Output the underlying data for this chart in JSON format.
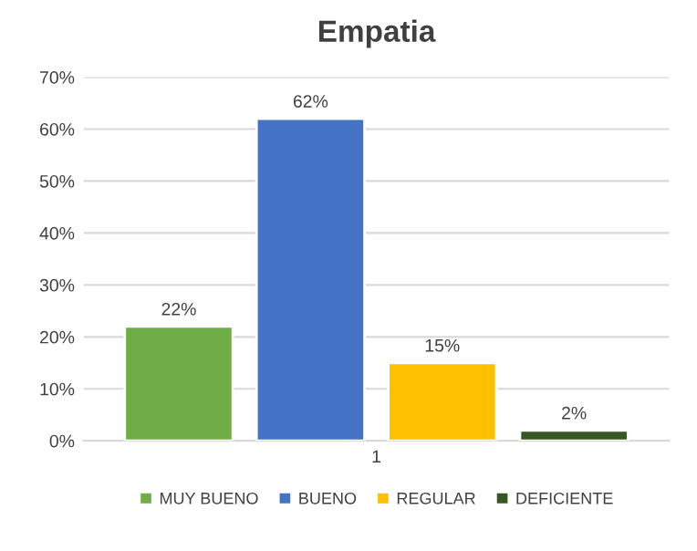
{
  "chart_data": {
    "type": "bar",
    "title": "Empatia",
    "categories": [
      "1"
    ],
    "series": [
      {
        "name": "MUY BUENO",
        "color": "#70ad47",
        "values": [
          22
        ],
        "value_labels": [
          "22%"
        ]
      },
      {
        "name": "BUENO",
        "color": "#4472c4",
        "values": [
          62
        ],
        "value_labels": [
          "62%"
        ]
      },
      {
        "name": "REGULAR",
        "color": "#ffc000",
        "values": [
          15
        ],
        "value_labels": [
          "15%"
        ]
      },
      {
        "name": "DEFICIENTE",
        "color": "#375623",
        "values": [
          2
        ],
        "value_labels": [
          "2%"
        ]
      }
    ],
    "ylim": [
      0,
      70
    ],
    "yticks": [
      {
        "value": 0,
        "label": "0%"
      },
      {
        "value": 10,
        "label": "10%"
      },
      {
        "value": 20,
        "label": "20%"
      },
      {
        "value": 30,
        "label": "30%"
      },
      {
        "value": 40,
        "label": "40%"
      },
      {
        "value": 50,
        "label": "50%"
      },
      {
        "value": 60,
        "label": "60%"
      },
      {
        "value": 70,
        "label": "70%"
      }
    ],
    "grid": "y",
    "legend": "bottom"
  }
}
